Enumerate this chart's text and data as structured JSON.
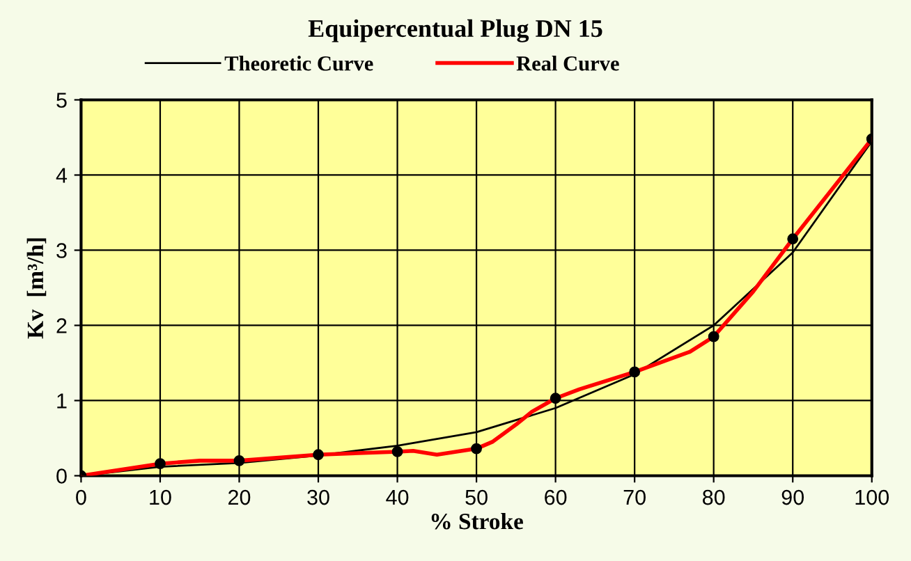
{
  "chart_data": {
    "type": "line",
    "title": "Equipercentual Plug DN 15",
    "xlabel": "% Stroke",
    "ylabel": "Kv  [m³/h]",
    "xlim": [
      0,
      100
    ],
    "xticks": [
      0,
      10,
      20,
      30,
      40,
      50,
      60,
      70,
      80,
      90,
      100
    ],
    "ylim": [
      0,
      5
    ],
    "yticks": [
      0,
      1,
      2,
      3,
      4,
      5
    ],
    "grid": true,
    "legend": "top",
    "line_style": "solid",
    "series": [
      {
        "name": "Theoretic Curve",
        "color": "#000000",
        "x": [
          0,
          10,
          20,
          30,
          40,
          50,
          60,
          70,
          80,
          90,
          100
        ],
        "values": [
          0,
          0.12,
          0.17,
          0.27,
          0.4,
          0.58,
          0.9,
          1.35,
          2.0,
          2.97,
          4.45
        ]
      },
      {
        "name": "Real Curve",
        "color": "#ff0000",
        "x": [
          0,
          10,
          15,
          20,
          30,
          40,
          42,
          45,
          50,
          52,
          55,
          57,
          60,
          63,
          70,
          77,
          80,
          85,
          90,
          100
        ],
        "values": [
          0,
          0.16,
          0.2,
          0.2,
          0.28,
          0.32,
          0.33,
          0.28,
          0.36,
          0.45,
          0.68,
          0.85,
          1.03,
          1.15,
          1.38,
          1.65,
          1.85,
          2.45,
          3.15,
          4.48
        ]
      },
      {
        "type": "scatter",
        "color": "#000000",
        "marker": "circle",
        "x": [
          0,
          10,
          20,
          30,
          40,
          50,
          60,
          70,
          80,
          90,
          100
        ],
        "values": [
          0,
          0.16,
          0.2,
          0.28,
          0.32,
          0.36,
          1.03,
          1.38,
          1.85,
          3.15,
          4.48
        ]
      }
    ]
  }
}
